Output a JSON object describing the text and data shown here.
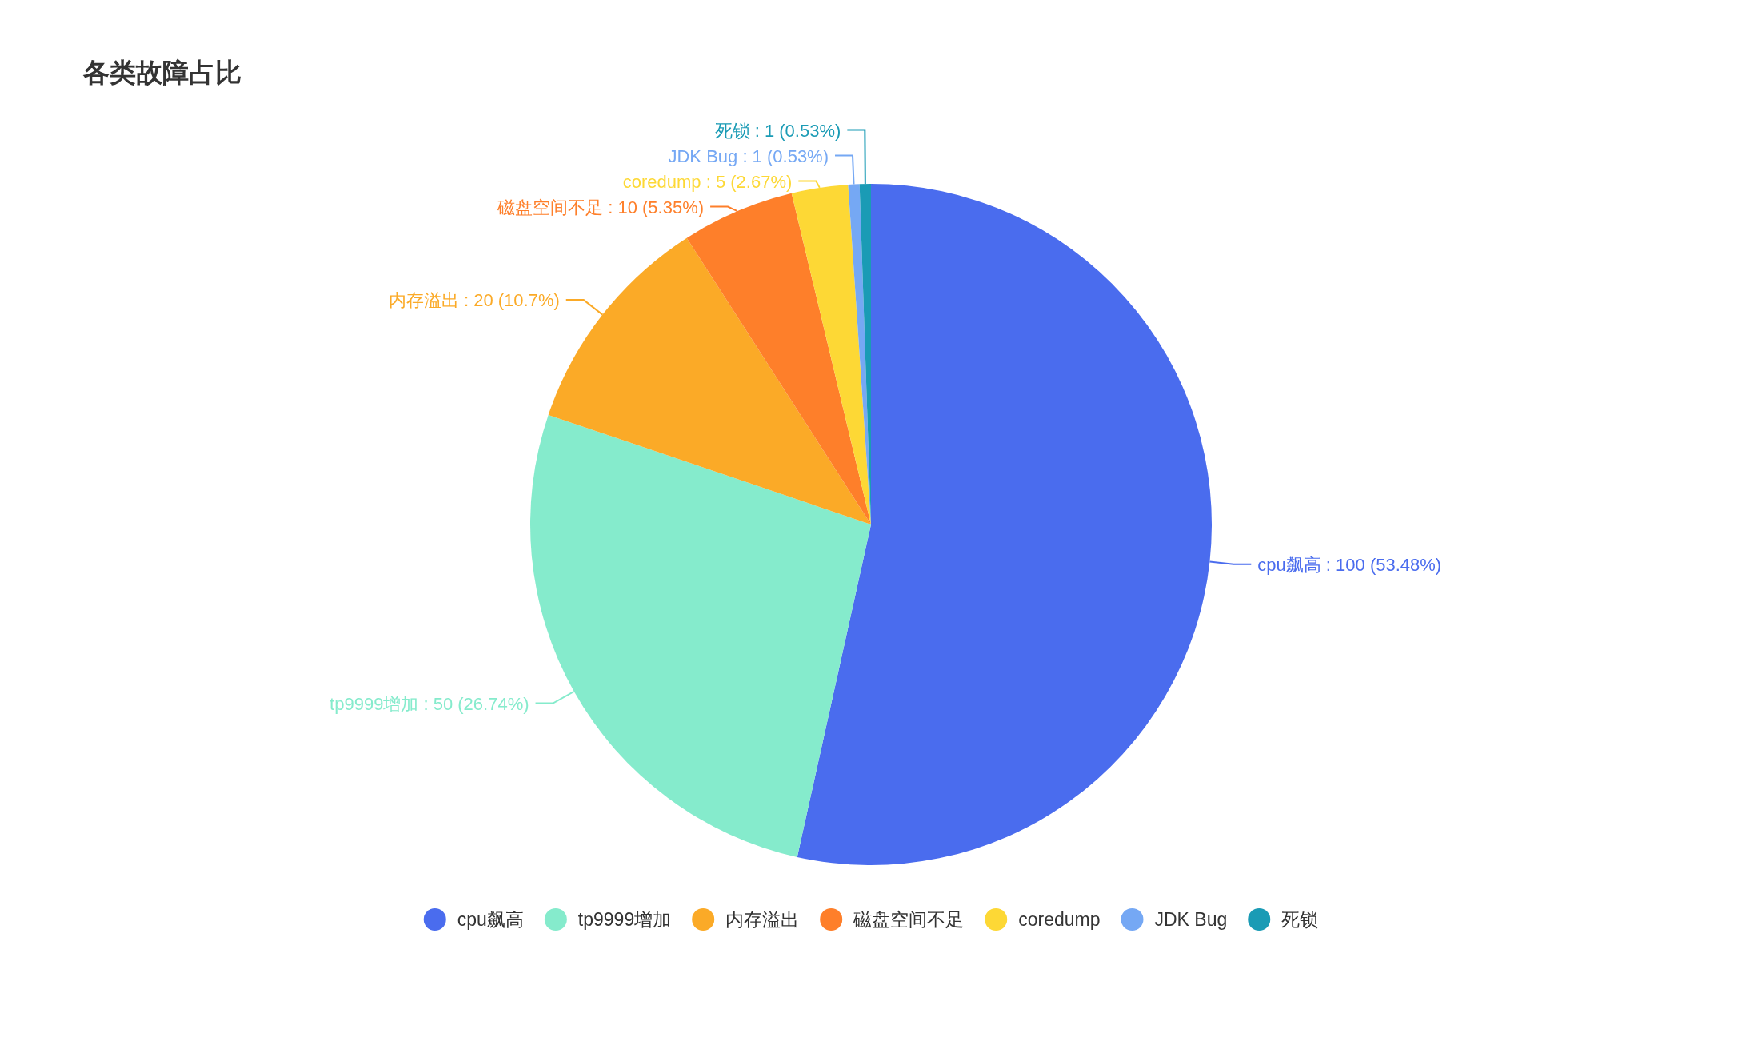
{
  "chart_data": {
    "type": "pie",
    "title": "各类故障占比",
    "categories": [
      "cpu飙高",
      "tp9999增加",
      "内存溢出",
      "磁盘空间不足",
      "coredump",
      "JDK Bug",
      "死锁"
    ],
    "values": [
      100,
      50,
      20,
      10,
      5,
      1,
      1
    ],
    "colors": [
      "#4a6cee",
      "#85ebcc",
      "#fbaa27",
      "#fe7f2a",
      "#fdd835",
      "#75a8f4",
      "#1a9bb5"
    ],
    "value_labels": [
      "cpu飙高 : 100 (53.48%)",
      "tp9999增加 : 50 (26.74%)",
      "内存溢出 : 20 (10.7%)",
      "磁盘空间不足 : 10 (5.35%)",
      "coredump : 5 (2.67%)",
      "JDK Bug : 1 (0.53%)",
      "死锁 : 1 (0.53%)"
    ],
    "legend": "bottom"
  }
}
